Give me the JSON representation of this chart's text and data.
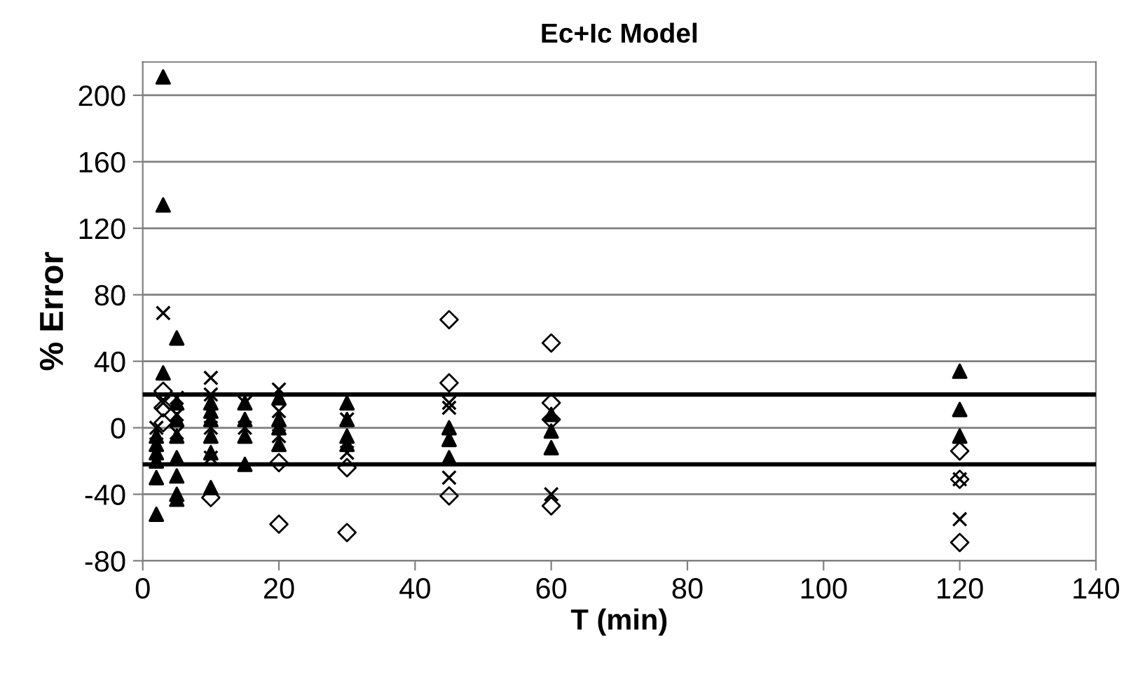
{
  "chart_data": {
    "type": "scatter",
    "title": "Ec+Ic Model",
    "xlabel": "T (min)",
    "ylabel": "% Error",
    "xlim": [
      0,
      140
    ],
    "xticks": [
      0,
      20,
      40,
      60,
      80,
      100,
      120,
      140
    ],
    "ylim": [
      -80,
      220
    ],
    "yticks": [
      -80,
      -40,
      0,
      40,
      80,
      120,
      160,
      200
    ],
    "grid": "y",
    "legend": false,
    "ref_lines": [
      {
        "axis": "y",
        "value": 20,
        "color": "#000000"
      },
      {
        "axis": "y",
        "value": -22,
        "color": "#000000"
      }
    ],
    "series": [
      {
        "color": "#000000",
        "marker": "triangle",
        "x": [
          3,
          3,
          3,
          5,
          2,
          2,
          2,
          2,
          2,
          2,
          5,
          5,
          5,
          5,
          5,
          5,
          5,
          10,
          10,
          10,
          10,
          10,
          10,
          15,
          15,
          15,
          15,
          20,
          20,
          20,
          20,
          30,
          30,
          30,
          30,
          45,
          45,
          45,
          60,
          60,
          60,
          120,
          120,
          120
        ],
        "values": [
          211,
          134,
          33,
          -43,
          -52,
          -15,
          -5,
          -20,
          -30,
          -10,
          54,
          -18,
          -29,
          -40,
          15,
          5,
          -5,
          -36,
          15,
          5,
          -5,
          -15,
          10,
          -22,
          15,
          5,
          -5,
          18,
          0,
          -10,
          5,
          15,
          5,
          -5,
          -10,
          0,
          -7,
          -18,
          8,
          -2,
          -12,
          34,
          11,
          -5
        ]
      },
      {
        "color": "#000000",
        "marker": "cross",
        "x": [
          3,
          3,
          2,
          2,
          5,
          5,
          5,
          10,
          10,
          10,
          10,
          15,
          15,
          20,
          20,
          20,
          30,
          30,
          45,
          45,
          45,
          60,
          120,
          120
        ],
        "values": [
          69,
          15,
          0,
          -10,
          18,
          8,
          -3,
          30,
          20,
          0,
          -18,
          15,
          0,
          23,
          10,
          -5,
          5,
          -15,
          15,
          12,
          -30,
          -40,
          -31,
          -55
        ]
      },
      {
        "color": "#000000",
        "marker": "diamond",
        "x": [
          3,
          3,
          3,
          10,
          20,
          20,
          30,
          30,
          45,
          45,
          45,
          60,
          60,
          60,
          60,
          120,
          120,
          120
        ],
        "values": [
          22,
          12,
          3,
          -42,
          -21,
          -58,
          -24,
          -63,
          65,
          27,
          -41,
          51,
          15,
          5,
          -47,
          -14,
          -31,
          -69
        ]
      }
    ]
  }
}
